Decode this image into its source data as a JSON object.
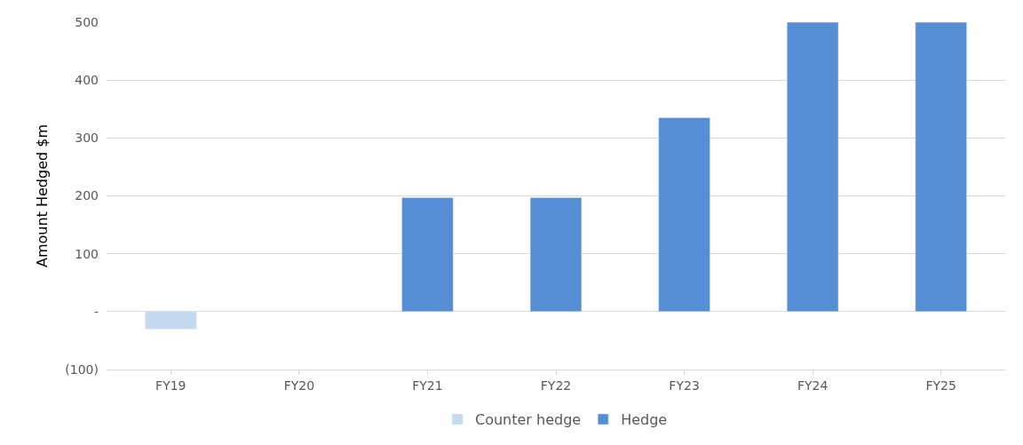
{
  "chart_data": {
    "type": "bar",
    "ylabel": "Amount Hedged $m",
    "categories": [
      "FY19",
      "FY20",
      "FY21",
      "FY22",
      "FY23",
      "FY24",
      "FY25"
    ],
    "series": [
      {
        "name": "Counter hedge",
        "color": "#c5d9f1",
        "values": [
          -30,
          null,
          null,
          null,
          null,
          null,
          null
        ]
      },
      {
        "name": "Hedge",
        "color": "#558ed5",
        "values": [
          null,
          null,
          197,
          197,
          335,
          500,
          500
        ]
      }
    ],
    "stacked": true,
    "ylim": [
      -100,
      500
    ],
    "yticks": [
      {
        "value": -100,
        "label": "(100)"
      },
      {
        "value": 0,
        "label": "-"
      },
      100,
      200,
      300,
      400,
      500
    ],
    "grid": "y",
    "legend": "bottom"
  }
}
